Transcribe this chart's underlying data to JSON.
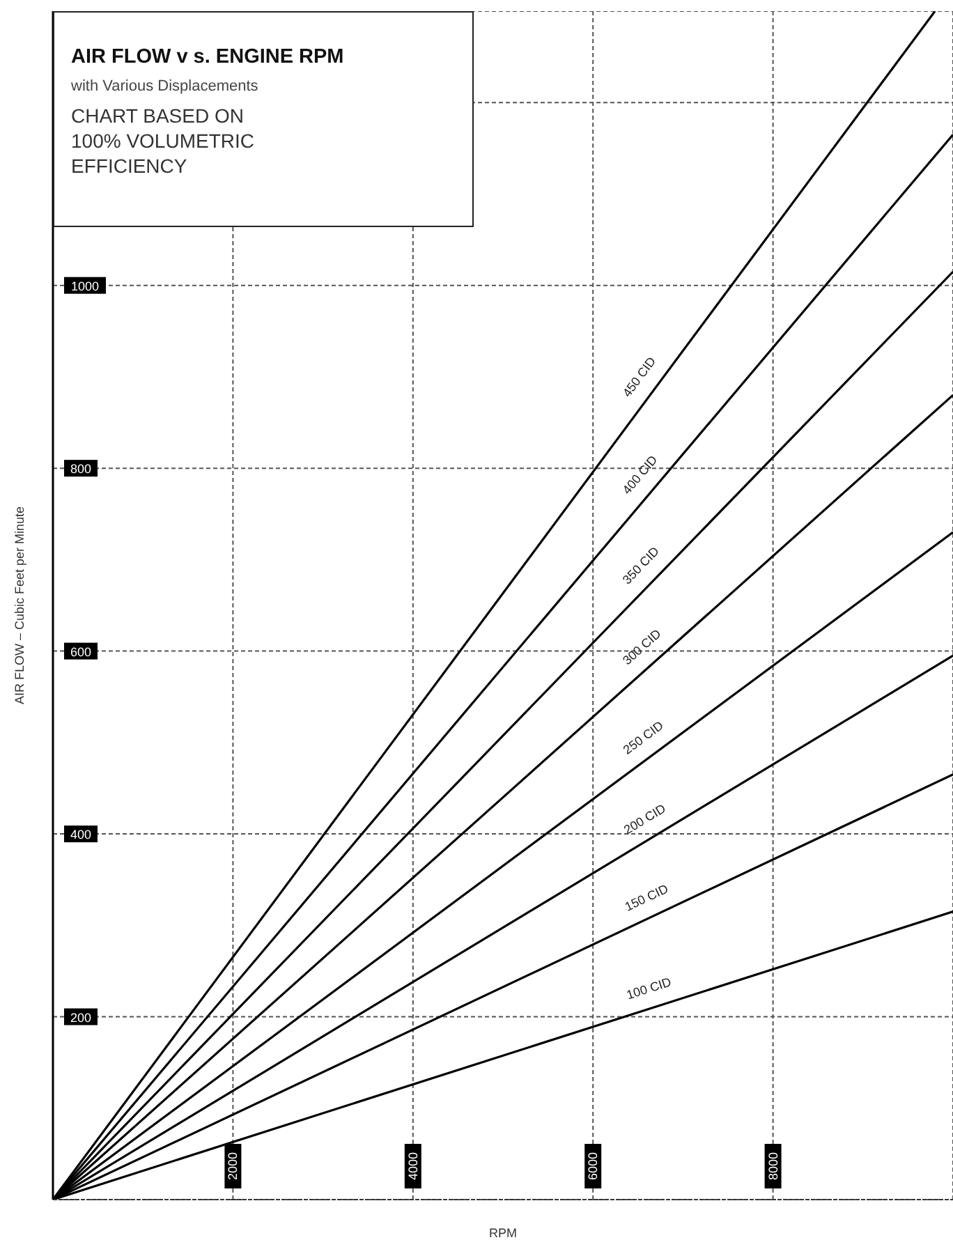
{
  "chart_data": {
    "type": "line",
    "title": "AIR FLOW v s. ENGINE RPM",
    "subtitle": "with Various Displacements",
    "annotations": [
      "CHART BASED ON 100% VOLUMETRIC EFFICIENCY"
    ],
    "xlabel": "RPM",
    "ylabel": "AIR FLOW – Cubic Feet per Minute",
    "xlim": [
      0,
      10000
    ],
    "xticks": [
      2000,
      4000,
      6000,
      8000
    ],
    "ylim": [
      0,
      1300
    ],
    "yticks": [
      200,
      400,
      600,
      800,
      1000,
      {
        "value": 1200,
        "label": null
      }
    ],
    "grid": true,
    "marker": "none",
    "line_style": "solid",
    "series": [
      {
        "name": "450 CID",
        "color": "#000000",
        "x": [
          0,
          9800
        ],
        "values": [
          0,
          1300
        ]
      },
      {
        "name": "400 CID",
        "color": "#000000",
        "x": [
          0,
          10000
        ],
        "values": [
          0,
          1165
        ]
      },
      {
        "name": "350 CID",
        "color": "#000000",
        "x": [
          0,
          10000
        ],
        "values": [
          0,
          1015
        ]
      },
      {
        "name": "300 CID",
        "color": "#000000",
        "x": [
          0,
          10000
        ],
        "values": [
          0,
          880
        ]
      },
      {
        "name": "250 CID",
        "color": "#000000",
        "x": [
          0,
          10000
        ],
        "values": [
          0,
          730
        ]
      },
      {
        "name": "200 CID",
        "color": "#000000",
        "x": [
          0,
          10000
        ],
        "values": [
          0,
          595
        ]
      },
      {
        "name": "150 CID",
        "color": "#000000",
        "x": [
          0,
          10000
        ],
        "values": [
          0,
          465
        ]
      },
      {
        "name": "100 CID",
        "color": "#000000",
        "x": [
          0,
          10000
        ],
        "values": [
          0,
          315
        ]
      }
    ]
  }
}
